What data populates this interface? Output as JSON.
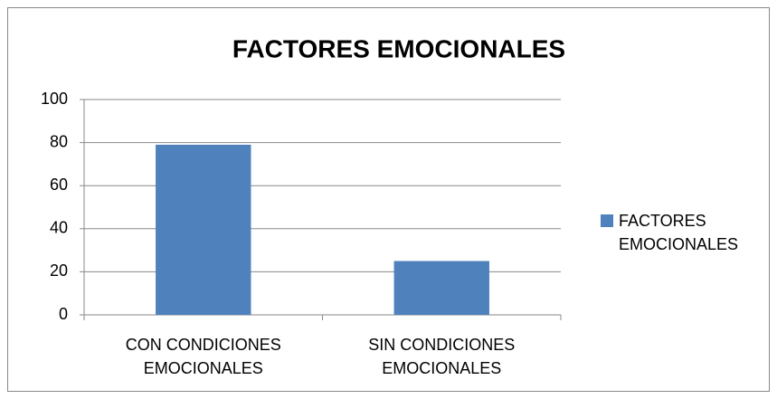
{
  "chart_data": {
    "type": "bar",
    "title": "FACTORES EMOCIONALES",
    "categories": [
      "CON CONDICIONES EMOCIONALES",
      "SIN CONDICIONES EMOCIONALES"
    ],
    "series": [
      {
        "name": "FACTORES EMOCIONALES",
        "color": "#4f81bd",
        "values": [
          79,
          25
        ]
      }
    ],
    "ylim": [
      0,
      100
    ],
    "yticks": [
      0,
      20,
      40,
      60,
      80,
      100
    ],
    "grid": true,
    "legend": "right"
  }
}
